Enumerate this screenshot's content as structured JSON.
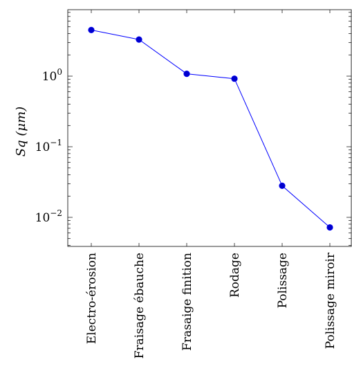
{
  "chart_data": {
    "type": "line",
    "categories": [
      "Electro-érosion",
      "Fraisage ébauche",
      "Frasaige finition",
      "Rodage",
      "Polissage",
      "Polissage miroir"
    ],
    "series": [
      {
        "values": [
          4.5,
          3.3,
          1.08,
          0.92,
          0.028,
          0.0072
        ]
      }
    ],
    "ylabel": "Sq (μm)",
    "yscale": "log",
    "ylim": [
      0.004,
      8
    ],
    "yticks": [
      {
        "value": 1,
        "base": "10",
        "exp": "0"
      },
      {
        "value": 0.1,
        "base": "10",
        "exp": "−1"
      },
      {
        "value": 0.01,
        "base": "10",
        "exp": "−2"
      }
    ],
    "grid": false,
    "legend": "none",
    "colors": {
      "line": "#0000ff",
      "marker": "#0000cc",
      "axis": "#000000"
    }
  }
}
